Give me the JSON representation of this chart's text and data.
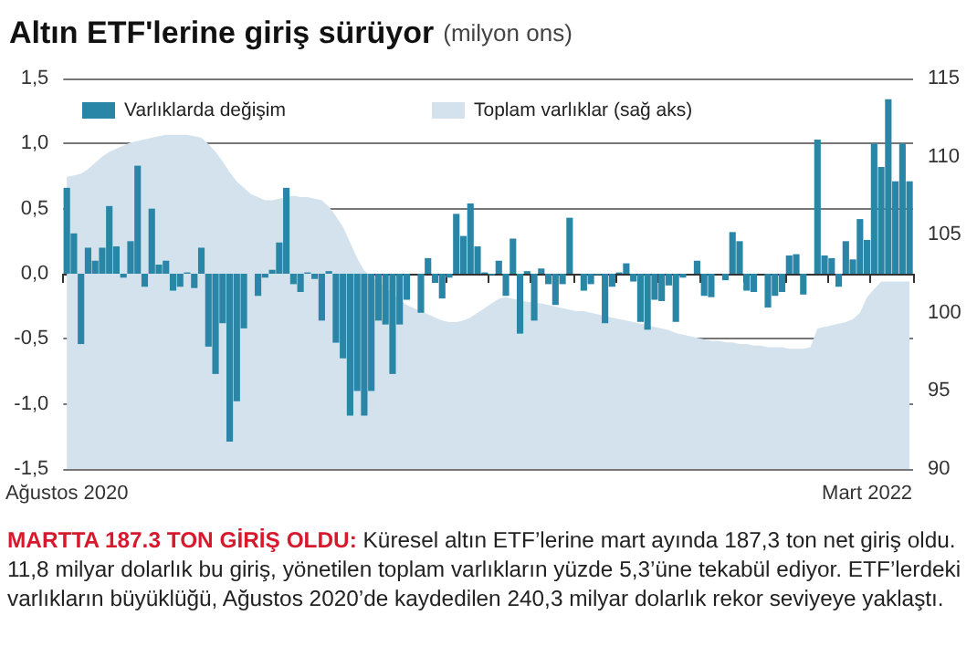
{
  "chart_data": {
    "type": "bar",
    "title": "Altın ETF'lerine giriş sürüyor",
    "subtitle": "(milyon ons)",
    "categories": [
      "Ağustos 2020",
      null,
      null,
      null,
      null,
      null,
      null,
      null,
      null,
      null,
      null,
      null,
      null,
      null,
      null,
      null,
      null,
      null,
      null,
      null,
      null,
      null,
      null,
      null,
      null,
      null,
      null,
      null,
      null,
      null,
      null,
      null,
      null,
      null,
      null,
      null,
      null,
      null,
      null,
      null,
      null,
      null,
      null,
      null,
      null,
      null,
      null,
      null,
      null,
      null,
      null,
      null,
      null,
      null,
      null,
      null,
      null,
      null,
      null,
      null,
      null,
      null,
      null,
      null,
      null,
      null,
      null,
      null,
      null,
      null,
      null,
      null,
      null,
      null,
      null,
      null,
      null,
      null,
      null,
      null,
      null,
      null,
      null,
      null,
      null,
      null,
      null,
      null,
      null,
      null,
      null,
      null,
      null,
      null,
      null,
      null,
      null,
      null,
      null,
      null,
      null,
      null,
      null,
      null,
      null,
      null,
      null,
      null,
      null,
      null,
      null,
      null,
      null,
      "Mart 2022",
      null,
      null,
      null,
      null,
      null,
      null
    ],
    "series": [
      {
        "name": "Varlıklarda değişim",
        "color": "#2a86a6",
        "values": [
          0.66,
          0.31,
          -0.54,
          0.2,
          0.1,
          0.2,
          0.52,
          0.21,
          -0.03,
          0.25,
          0.83,
          -0.1,
          0.5,
          0.07,
          0.1,
          -0.13,
          -0.1,
          0.01,
          -0.11,
          0.2,
          -0.56,
          -0.77,
          -0.38,
          -1.29,
          -0.98,
          -0.42,
          0,
          -0.17,
          -0.03,
          0.03,
          0.24,
          0.66,
          -0.08,
          -0.14,
          0.01,
          -0.04,
          -0.36,
          0.02,
          -0.53,
          -0.65,
          -1.09,
          -0.9,
          -1.09,
          -0.9,
          -0.36,
          -0.39,
          -0.77,
          -0.39,
          -0.2,
          0,
          -0.3,
          0.12,
          -0.07,
          -0.19,
          -0.03,
          0.46,
          0.29,
          0.54,
          0.21,
          0.01,
          -0.01,
          0.1,
          -0.17,
          0.27,
          -0.46,
          0.02,
          -0.36,
          0.04,
          -0.08,
          -0.24,
          -0.08,
          0.43,
          0,
          -0.13,
          -0.08,
          -0.01,
          -0.38,
          -0.1,
          0.01,
          0.08,
          -0.06,
          -0.37,
          -0.43,
          -0.2,
          -0.21,
          -0.09,
          -0.37,
          -0.03,
          0,
          0.1,
          -0.17,
          -0.18,
          0,
          -0.05,
          0.32,
          0.25,
          -0.13,
          -0.14,
          0,
          -0.26,
          -0.17,
          -0.14,
          0.14,
          0.15,
          -0.16,
          0,
          1.03,
          0.14,
          0.12,
          -0.1,
          0.25,
          0.11,
          0.42,
          0.26,
          1.0,
          0.82,
          1.34,
          0.71,
          1.0,
          0.71
        ]
      },
      {
        "name": "Toplam varlıklar (sağ aks)",
        "type": "area",
        "axis": "y2",
        "color": "#d3e2ec",
        "values": [
          108.7,
          108.8,
          108.9,
          109.2,
          109.6,
          110,
          110.3,
          110.5,
          110.7,
          110.9,
          111,
          111.1,
          111.2,
          111.3,
          111.4,
          111.4,
          111.4,
          111.4,
          111.3,
          111.2,
          110.8,
          110.3,
          109.7,
          109,
          108.4,
          108,
          107.6,
          107.4,
          107.2,
          107.2,
          107.3,
          null,
          107.5,
          107.4,
          107.4,
          107.3,
          107.2,
          106.8,
          106.2,
          105.5,
          104.5,
          103.5,
          102.7,
          null,
          null,
          null,
          null,
          null,
          100.5,
          100.3,
          100.1,
          99.9,
          99.7,
          99.5,
          99.4,
          99.4,
          99.5,
          99.7,
          100,
          100.3,
          100.6,
          100.9,
          101,
          100.9,
          null,
          100.7,
          null,
          100.6,
          100.5,
          100.4,
          100.3,
          100.2,
          100.1,
          100.1,
          100,
          99.9,
          null,
          99.7,
          99.6,
          99.5,
          99.4,
          99.3,
          null,
          99.1,
          99,
          98.9,
          98.7,
          98.6,
          98.5,
          98.4,
          98.3,
          98.2,
          98.2,
          98.1,
          98.1,
          98,
          98,
          97.9,
          97.9,
          97.8,
          97.8,
          97.8,
          97.7,
          97.7,
          97.7,
          97.8,
          99,
          99.1,
          99.2,
          99.3,
          99.4,
          99.6,
          100,
          101,
          101.5,
          102,
          102,
          102,
          102,
          102
        ]
      }
    ],
    "ylim": [
      -1.5,
      1.5
    ],
    "yticks": [
      {
        "value": -1.5,
        "label": "-1,5"
      },
      {
        "value": -1,
        "label": "-1,0"
      },
      {
        "value": -0.5,
        "label": "-0,5"
      },
      {
        "value": 0,
        "label": "0,0"
      },
      {
        "value": 0.5,
        "label": "0,5"
      },
      {
        "value": 1,
        "label": "1,0"
      },
      {
        "value": 1.5,
        "label": "1,5"
      }
    ],
    "y2lim": [
      90,
      115
    ],
    "y2ticks": [
      90,
      95,
      100,
      105,
      110,
      115
    ],
    "grid": "y",
    "legend": "top",
    "annotations": [
      "MARTTA 187.3 TON GİRİŞ OLDU:",
      "Küresel altın ETF’lerine mart ayında 187,3 ton net giriş oldu. 11,8 milyar dolarlık bu giriş, yönetilen toplam varlıkların yüzde 5,3’üne tekabül ediyor.  ETF’lerdeki varlıkların büyüklüğü, Ağustos 2020’de kaydedilen 240,3 milyar dolarlık rekor seviyeye yaklaştı."
    ]
  }
}
